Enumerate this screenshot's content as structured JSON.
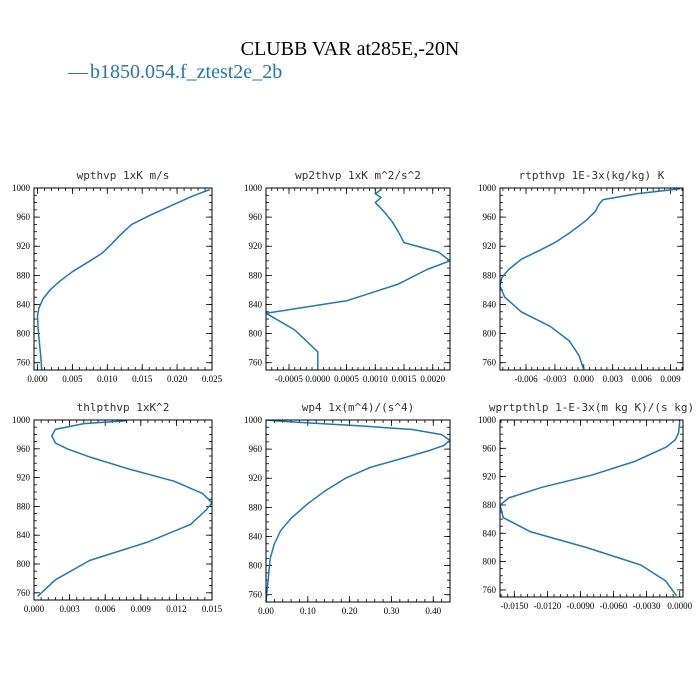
{
  "figure": {
    "title": "CLUBB VAR at285E,-20N",
    "legend": {
      "marker": "—",
      "label": "b1850.054.f_ztest2e_2b",
      "color": "#1f77b4"
    }
  },
  "chart_data": [
    {
      "type": "line",
      "title": "wpthvp   1xK m/s",
      "xlim": [
        -0.0005,
        0.025
      ],
      "ylim": [
        1000,
        750
      ],
      "xticks": [
        0,
        0.005,
        0.01,
        0.015,
        0.02,
        0.025
      ],
      "xtick_labels": [
        "0.000",
        "0.005",
        "0.010",
        "0.015",
        "0.020",
        "0.025"
      ],
      "yticks": [
        760,
        800,
        840,
        880,
        920,
        960,
        1000
      ],
      "ytick_labels": [
        "760",
        "800",
        "840",
        "880",
        "920",
        "960",
        "1000"
      ],
      "series": [
        {
          "color": "#1f77b4",
          "x": [
            0.0006,
            0.0005,
            0.0003,
            0.0001,
            0.0,
            0.0002,
            0.0008,
            0.0018,
            0.0032,
            0.005,
            0.0072,
            0.0092,
            0.0105,
            0.0118,
            0.0135,
            0.016,
            0.019,
            0.022,
            0.0247
          ],
          "y": [
            750,
            765,
            785,
            805,
            825,
            835,
            848,
            860,
            872,
            885,
            898,
            910,
            922,
            935,
            950,
            962,
            975,
            988,
            998
          ]
        }
      ]
    },
    {
      "type": "line",
      "title": "wp2thvp   1xK m^2/s^2",
      "xlim": [
        -0.0009,
        0.0023
      ],
      "ylim": [
        1000,
        750
      ],
      "xticks": [
        -0.0005,
        0.0,
        0.0005,
        0.001,
        0.0015,
        0.002
      ],
      "xtick_labels": [
        "-0.0005",
        "0.0000",
        "0.0005",
        "0.0010",
        "0.0015",
        "0.0020"
      ],
      "yticks": [
        760,
        800,
        840,
        880,
        920,
        960,
        1000
      ],
      "ytick_labels": [
        "760",
        "800",
        "840",
        "880",
        "920",
        "960",
        "1000"
      ],
      "series": [
        {
          "color": "#1f77b4",
          "x": [
            0.0,
            0.0,
            -0.0004,
            -0.0009,
            0.0005,
            0.0014,
            0.0019,
            0.0023,
            0.0021,
            0.0015,
            0.0014,
            0.0013,
            0.0012,
            0.0011,
            0.001,
            0.0011,
            0.001,
            0.0011
          ],
          "y": [
            750,
            775,
            805,
            828,
            845,
            868,
            888,
            900,
            912,
            925,
            940,
            953,
            963,
            972,
            980,
            987,
            992,
            998
          ]
        }
      ]
    },
    {
      "type": "line",
      "title": "rtpthvp   1E-3x(kg/kg) K",
      "xlim": [
        -0.0087,
        0.0103
      ],
      "ylim": [
        1000,
        750
      ],
      "xticks": [
        -0.006,
        -0.003,
        0.0,
        0.003,
        0.006,
        0.009
      ],
      "xtick_labels": [
        "-0.006",
        "-0.003",
        "0.000",
        "0.003",
        "0.006",
        "0.009"
      ],
      "yticks": [
        760,
        800,
        840,
        880,
        920,
        960,
        1000
      ],
      "ytick_labels": [
        "760",
        "800",
        "840",
        "880",
        "920",
        "960",
        "1000"
      ],
      "series": [
        {
          "color": "#1f77b4",
          "x": [
            0.0,
            -0.0005,
            -0.0015,
            -0.0035,
            -0.0065,
            -0.0082,
            -0.0087,
            -0.0085,
            -0.0078,
            -0.0065,
            -0.0045,
            -0.003,
            -0.0015,
            0.0002,
            0.0012,
            0.0016,
            0.002,
            0.0055,
            0.01
          ],
          "y": [
            750,
            770,
            790,
            810,
            830,
            850,
            865,
            877,
            888,
            902,
            915,
            925,
            938,
            955,
            968,
            978,
            984,
            992,
            999
          ]
        }
      ]
    },
    {
      "type": "line",
      "title": "thlpthvp   1xK^2",
      "xlim": [
        0.0,
        0.015
      ],
      "ylim": [
        1000,
        750
      ],
      "xticks": [
        0.0,
        0.003,
        0.006,
        0.009,
        0.012,
        0.015
      ],
      "xtick_labels": [
        "0.000",
        "0.003",
        "0.006",
        "0.009",
        "0.012",
        "0.015"
      ],
      "yticks": [
        760,
        800,
        840,
        880,
        920,
        960,
        1000
      ],
      "ytick_labels": [
        "760",
        "800",
        "840",
        "880",
        "920",
        "960",
        "1000"
      ],
      "series": [
        {
          "color": "#1f77b4",
          "x": [
            0.0003,
            0.0018,
            0.0047,
            0.0095,
            0.0132,
            0.0145,
            0.015,
            0.0142,
            0.0118,
            0.008,
            0.0048,
            0.0028,
            0.0018,
            0.0015,
            0.0018,
            0.0042,
            0.0078
          ],
          "y": [
            755,
            778,
            805,
            830,
            855,
            875,
            885,
            898,
            915,
            932,
            948,
            960,
            968,
            978,
            987,
            995,
            999
          ]
        }
      ]
    },
    {
      "type": "line",
      "title": "wp4   1x(m^4)/(s^4)",
      "xlim": [
        0.0,
        0.44
      ],
      "ylim": [
        1000,
        750
      ],
      "xticks": [
        0.0,
        0.1,
        0.2,
        0.3,
        0.4
      ],
      "xtick_labels": [
        "0.00",
        "0.10",
        "0.20",
        "0.30",
        "0.40"
      ],
      "yticks": [
        760,
        800,
        840,
        880,
        920,
        960,
        1000
      ],
      "ytick_labels": [
        "760",
        "800",
        "840",
        "880",
        "920",
        "960",
        "1000"
      ],
      "series": [
        {
          "color": "#1f77b4",
          "x": [
            0.0,
            0.005,
            0.01,
            0.02,
            0.035,
            0.06,
            0.1,
            0.14,
            0.19,
            0.25,
            0.33,
            0.39,
            0.425,
            0.44,
            0.42,
            0.35,
            0.22,
            0.1,
            0.02,
            0.0
          ],
          "y": [
            750,
            780,
            810,
            830,
            848,
            865,
            885,
            902,
            920,
            935,
            948,
            958,
            965,
            972,
            980,
            987,
            992,
            996,
            999,
            1000
          ]
        }
      ]
    },
    {
      "type": "line",
      "title": "wprtpthlp   1-E-3x(m kg K)/(s kg)",
      "xlim": [
        -0.0163,
        0.0003
      ],
      "ylim": [
        1000,
        750
      ],
      "xticks": [
        -0.015,
        -0.012,
        -0.009,
        -0.006,
        -0.003,
        0.0
      ],
      "xtick_labels": [
        "-0.0150",
        "-0.0120",
        "-0.0090",
        "-0.0060",
        "-0.0030",
        "0.0000"
      ],
      "yticks": [
        760,
        800,
        840,
        880,
        920,
        960,
        1000
      ],
      "ytick_labels": [
        "760",
        "800",
        "840",
        "880",
        "920",
        "960",
        "1000"
      ],
      "series": [
        {
          "color": "#1f77b4",
          "x": [
            -0.0003,
            -0.0013,
            -0.0035,
            -0.0085,
            -0.0135,
            -0.016,
            -0.0163,
            -0.0155,
            -0.0125,
            -0.008,
            -0.004,
            -0.0012,
            -0.0004,
            -0.0001,
            0.0
          ],
          "y": [
            752,
            773,
            795,
            820,
            842,
            862,
            880,
            890,
            905,
            922,
            942,
            962,
            972,
            982,
            998
          ]
        }
      ]
    }
  ]
}
